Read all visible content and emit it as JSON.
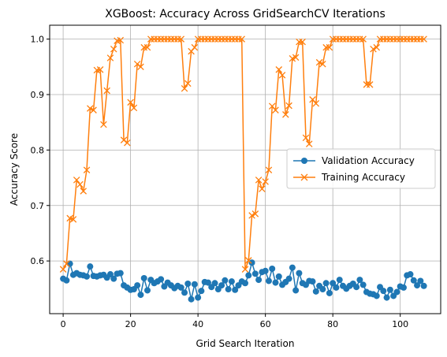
{
  "chart_data": {
    "type": "line",
    "title": "XGBoost: Accuracy Across GridSearchCV Iterations",
    "xlabel": "Grid Search Iteration",
    "ylabel": "Accuracy Score",
    "xlim": [
      -4,
      112
    ],
    "ylim": [
      0.505,
      1.025
    ],
    "xticks": [
      0,
      20,
      40,
      60,
      80,
      100
    ],
    "yticks": [
      0.6,
      0.7,
      0.8,
      0.9,
      1.0
    ],
    "xtick_labels": [
      "0",
      "20",
      "40",
      "60",
      "80",
      "100"
    ],
    "ytick_labels": [
      "0.6",
      "0.7",
      "0.8",
      "0.9",
      "1.0"
    ],
    "grid": true,
    "legend_position": "center-right",
    "series": [
      {
        "name": "Validation Accuracy",
        "color": "#1f77b4",
        "marker": "circle",
        "values": [
          0.568,
          0.565,
          0.595,
          0.575,
          0.578,
          0.575,
          0.574,
          0.572,
          0.59,
          0.573,
          0.572,
          0.574,
          0.575,
          0.57,
          0.576,
          0.568,
          0.577,
          0.578,
          0.556,
          0.552,
          0.548,
          0.549,
          0.556,
          0.539,
          0.569,
          0.547,
          0.566,
          0.56,
          0.563,
          0.567,
          0.554,
          0.561,
          0.556,
          0.551,
          0.555,
          0.552,
          0.543,
          0.559,
          0.531,
          0.558,
          0.534,
          0.546,
          0.562,
          0.561,
          0.553,
          0.56,
          0.549,
          0.556,
          0.565,
          0.549,
          0.563,
          0.548,
          0.556,
          0.563,
          0.56,
          0.574,
          0.597,
          0.577,
          0.566,
          0.58,
          0.582,
          0.564,
          0.586,
          0.561,
          0.572,
          0.557,
          0.562,
          0.568,
          0.588,
          0.547,
          0.578,
          0.56,
          0.557,
          0.564,
          0.563,
          0.545,
          0.555,
          0.549,
          0.56,
          0.542,
          0.56,
          0.552,
          0.566,
          0.555,
          0.55,
          0.555,
          0.559,
          0.553,
          0.566,
          0.557,
          0.544,
          0.541,
          0.54,
          0.537,
          0.553,
          0.546,
          0.534,
          0.548,
          0.537,
          0.544,
          0.554,
          0.552,
          0.574,
          0.576,
          0.565,
          0.556,
          0.564,
          0.555
        ]
      },
      {
        "name": "Training Accuracy",
        "color": "#ff7f0e",
        "marker": "x",
        "values": [
          0.585,
          0.595,
          0.677,
          0.675,
          0.746,
          0.738,
          0.726,
          0.764,
          0.875,
          0.872,
          0.944,
          0.945,
          0.846,
          0.907,
          0.966,
          0.982,
          0.997,
          0.998,
          0.818,
          0.813,
          0.886,
          0.876,
          0.955,
          0.95,
          0.985,
          0.985,
          1.0,
          1.0,
          1.0,
          1.0,
          1.0,
          1.0,
          1.0,
          1.0,
          1.0,
          1.0,
          0.911,
          0.92,
          0.978,
          0.985,
          1.0,
          1.0,
          1.0,
          1.0,
          1.0,
          1.0,
          1.0,
          1.0,
          1.0,
          1.0,
          1.0,
          1.0,
          1.0,
          1.0,
          0.585,
          0.601,
          0.682,
          0.685,
          0.746,
          0.73,
          0.743,
          0.764,
          0.879,
          0.872,
          0.945,
          0.935,
          0.864,
          0.88,
          0.965,
          0.967,
          0.995,
          0.995,
          0.822,
          0.811,
          0.891,
          0.884,
          0.958,
          0.955,
          0.985,
          0.985,
          1.0,
          1.0,
          1.0,
          1.0,
          1.0,
          1.0,
          1.0,
          1.0,
          1.0,
          1.0,
          0.918,
          0.918,
          0.982,
          0.985,
          1.0,
          1.0,
          1.0,
          1.0,
          1.0,
          1.0,
          1.0,
          1.0,
          1.0,
          1.0,
          1.0,
          1.0,
          1.0,
          1.0
        ]
      }
    ]
  }
}
